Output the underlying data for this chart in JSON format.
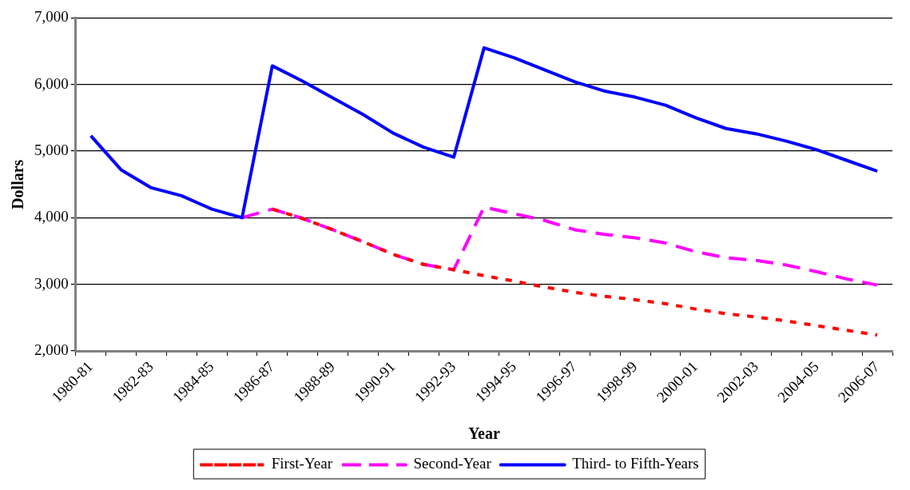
{
  "chart_data": {
    "type": "line",
    "xlabel": "Year",
    "ylabel": "Dollars",
    "categories": [
      "1980-81",
      null,
      "1982-83",
      null,
      "1984-85",
      null,
      "1986-87",
      null,
      "1988-89",
      null,
      "1990-91",
      null,
      "1992-93",
      null,
      "1994-95",
      null,
      "1996-97",
      null,
      "1998-99",
      null,
      "2000-01",
      null,
      "2002-03",
      null,
      "2004-05",
      null,
      "2006-07"
    ],
    "series": [
      {
        "name": "First-Year",
        "color": "#ff0000",
        "line_style": "dotted",
        "values": [
          null,
          null,
          null,
          null,
          null,
          null,
          4130,
          3990,
          3820,
          3640,
          3450,
          3300,
          3220,
          3130,
          3050,
          2960,
          2880,
          2820,
          2770,
          2710,
          2630,
          2560,
          2510,
          2450,
          2380,
          2310,
          2240
        ]
      },
      {
        "name": "Second-Year",
        "color": "#ff00ff",
        "line_style": "dashed",
        "values": [
          null,
          null,
          null,
          null,
          null,
          4000,
          4130,
          3990,
          3820,
          3640,
          3450,
          3300,
          3220,
          4160,
          4060,
          3960,
          3820,
          3750,
          3700,
          3620,
          3490,
          3400,
          3360,
          3290,
          3190,
          3080,
          2990
        ]
      },
      {
        "name": "Third- to Fifth-Years",
        "color": "#0000ff",
        "line_style": "solid",
        "values": [
          5230,
          4720,
          4450,
          4330,
          4130,
          4000,
          6280,
          6050,
          5800,
          5550,
          5270,
          5060,
          4910,
          6550,
          6400,
          6220,
          6040,
          5900,
          5810,
          5690,
          5500,
          5340,
          5260,
          5150,
          5020,
          4860,
          4700
        ]
      }
    ],
    "ylim": [
      2000,
      7000
    ],
    "yticks": [
      {
        "value": 2000,
        "label": "2,000"
      },
      {
        "value": 3000,
        "label": "3,000"
      },
      {
        "value": 4000,
        "label": "4,000"
      },
      {
        "value": 5000,
        "label": "5,000"
      },
      {
        "value": 6000,
        "label": "6,000"
      },
      {
        "value": 7000,
        "label": "7,000"
      }
    ],
    "grid": "y",
    "legend": "bottom",
    "marker": "none"
  }
}
